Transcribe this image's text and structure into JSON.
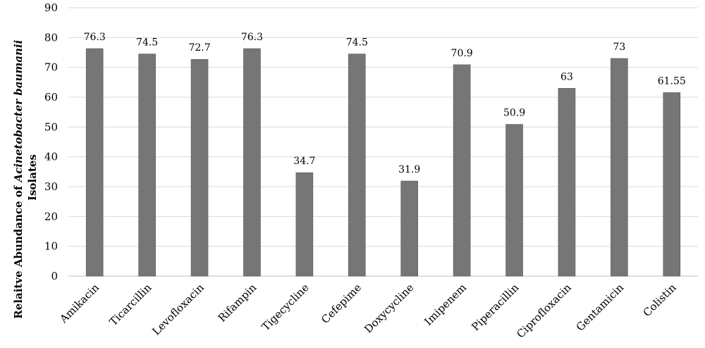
{
  "chart_data": {
    "type": "bar",
    "categories": [
      "Amikacin",
      "Ticarcillin",
      "Levofloxacin",
      "Rifampin",
      "Tigecycline",
      "Cefepime",
      "Doxycycline",
      "Imipenem",
      "Piperacillin",
      "Ciprofloxacin",
      "Gentamicin",
      "Colistin"
    ],
    "values": [
      76.3,
      74.5,
      72.7,
      76.3,
      34.7,
      74.5,
      31.9,
      70.9,
      50.9,
      63,
      73,
      61.55
    ],
    "data_labels": [
      "76.3",
      "74.5",
      "72.7",
      "76.3",
      "34.7",
      "74.5",
      "31.9",
      "70.9",
      "50.9",
      "63",
      "73",
      "61.55"
    ],
    "ylabel": {
      "prefix": "Relaitve Abundance of ",
      "italic": "Acinetobacter baumanii",
      "suffix": "Isolates"
    },
    "xlabel": "",
    "ylim": [
      0,
      90
    ],
    "yticks": [
      "0",
      "10",
      "20",
      "30",
      "40",
      "50",
      "60",
      "70",
      "80",
      "90"
    ],
    "grid": true,
    "legend": "none",
    "bar_color": "#767676"
  }
}
